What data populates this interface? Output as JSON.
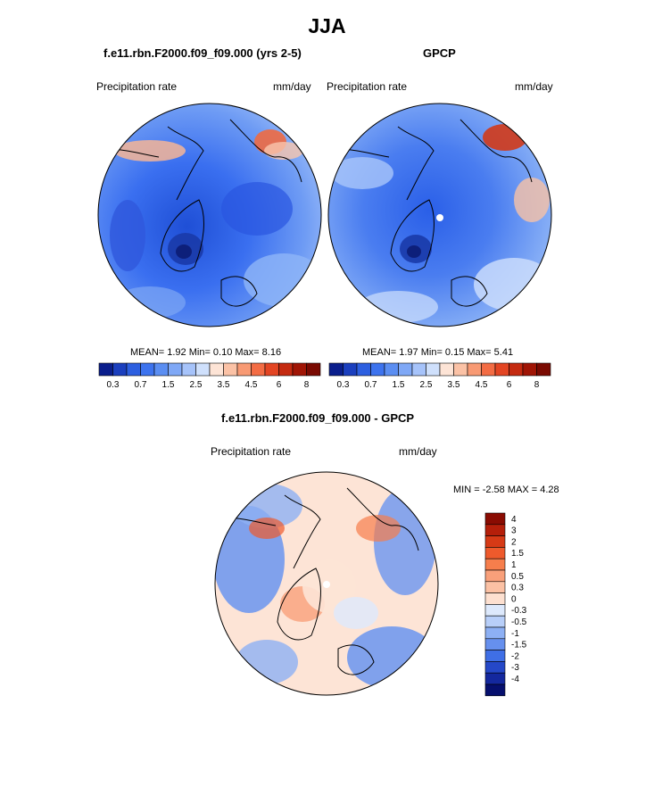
{
  "page": {
    "title": "JJA"
  },
  "panels": [
    {
      "title": "f.e11.rbn.F2000.f09_f09.000 (yrs 2-5)",
      "left_label": "Precipitation rate",
      "right_label": "mm/day",
      "stats": "MEAN=   1.92  Min=   0.10  Max=   8.16"
    },
    {
      "title": "GPCP",
      "left_label": "Precipitation rate",
      "right_label": "mm/day",
      "stats": "MEAN=   1.97  Min=   0.15  Max=   5.41"
    },
    {
      "title": "f.e11.rbn.F2000.f09_f09.000 - GPCP",
      "left_label": "Precipitation rate",
      "right_label": "mm/day",
      "stats": "MIN =  -2.58 MAX =   4.28"
    }
  ],
  "chart_data": [
    {
      "type": "heatmap",
      "projection": "north-polar-stereographic",
      "title": "f.e11.rbn.F2000.f09_f09.000 (yrs 2-5)",
      "variable": "Precipitation rate",
      "units": "mm/day",
      "mean": 1.92,
      "min": 0.1,
      "max": 8.16,
      "colorbar_ticks": [
        "0.3",
        "0.7",
        "1.5",
        "2.5",
        "3.5",
        "4.5",
        "6",
        "8"
      ],
      "colorbar_colors": [
        "#0a1e8c",
        "#1b3fbe",
        "#2d5fe0",
        "#3d73ee",
        "#5b8ef2",
        "#7fa8f6",
        "#a6c3fa",
        "#cfe0fc",
        "#fde4d6",
        "#fbc2a6",
        "#f89a74",
        "#f36c44",
        "#e34523",
        "#c42a10",
        "#a01505",
        "#7a0a02"
      ]
    },
    {
      "type": "heatmap",
      "projection": "north-polar-stereographic",
      "title": "GPCP",
      "variable": "Precipitation rate",
      "units": "mm/day",
      "mean": 1.97,
      "min": 0.15,
      "max": 5.41,
      "colorbar_ticks": [
        "0.3",
        "0.7",
        "1.5",
        "2.5",
        "3.5",
        "4.5",
        "6",
        "8"
      ],
      "colorbar_colors": [
        "#0a1e8c",
        "#1b3fbe",
        "#2d5fe0",
        "#3d73ee",
        "#5b8ef2",
        "#7fa8f6",
        "#a6c3fa",
        "#cfe0fc",
        "#fde4d6",
        "#fbc2a6",
        "#f89a74",
        "#f36c44",
        "#e34523",
        "#c42a10",
        "#a01505",
        "#7a0a02"
      ]
    },
    {
      "type": "heatmap",
      "projection": "north-polar-stereographic",
      "title": "f.e11.rbn.F2000.f09_f09.000 - GPCP",
      "variable": "Precipitation rate",
      "units": "mm/day",
      "min": -2.58,
      "max": 4.28,
      "colorbar_ticks": [
        "4",
        "3",
        "2",
        "1.5",
        "1",
        "0.5",
        "0.3",
        "0",
        "-0.3",
        "-0.5",
        "-1",
        "-1.5",
        "-2",
        "-3",
        "-4"
      ],
      "colorbar_colors": [
        "#8a0c02",
        "#b51f0a",
        "#d63a16",
        "#ee5a2c",
        "#f67e4c",
        "#f9a07a",
        "#fbc1a4",
        "#fde0d0",
        "#dde9fc",
        "#b8cff9",
        "#8db0f4",
        "#6690ee",
        "#3f6fe6",
        "#2548c8",
        "#14289e",
        "#060f6e"
      ]
    }
  ]
}
